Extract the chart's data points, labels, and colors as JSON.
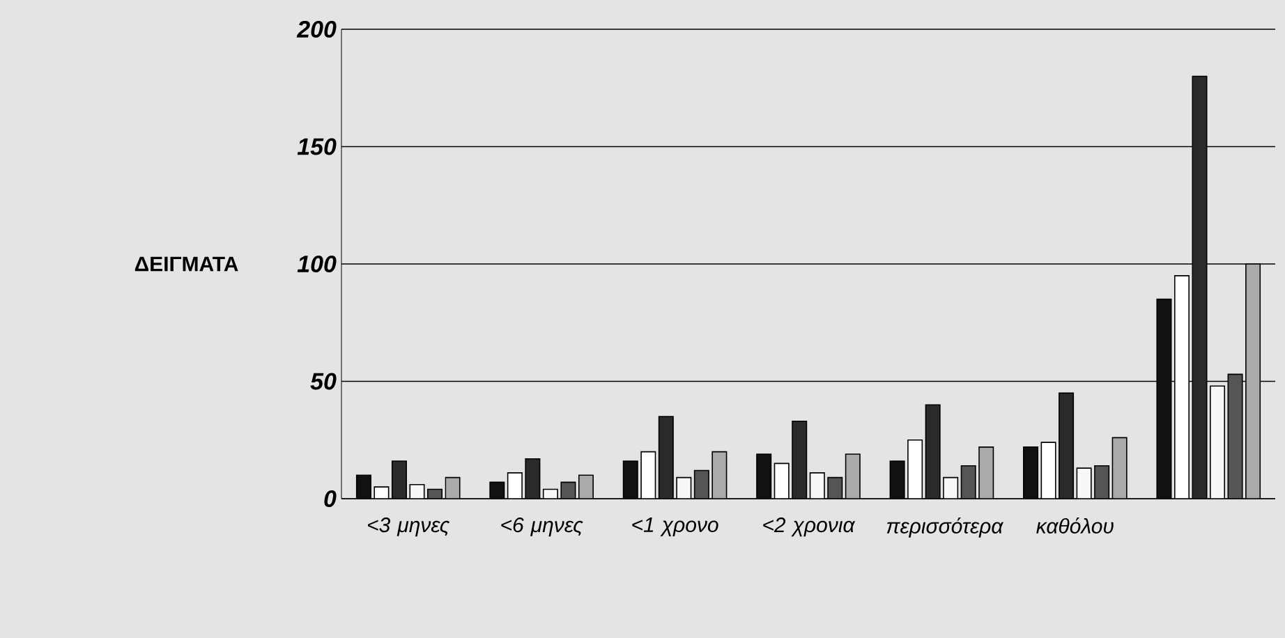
{
  "chart_data": {
    "type": "bar",
    "ylabel": "ΔΕΙΓΜΑΤΑ",
    "categories": [
      "<3 μηνες",
      "<6 μηνες",
      "<1 χρονο",
      "<2 χρονια",
      "περισσότερα",
      "καθόλου",
      null
    ],
    "series": [
      {
        "color": "#111111",
        "values": [
          10,
          7,
          16,
          19,
          16,
          22,
          85
        ]
      },
      {
        "color": "#ffffff",
        "values": [
          5,
          11,
          20,
          15,
          25,
          24,
          95
        ]
      },
      {
        "color": "#2a2a2a",
        "values": [
          16,
          17,
          35,
          33,
          40,
          45,
          180
        ]
      },
      {
        "color": "#f8f8f8",
        "values": [
          6,
          4,
          9,
          11,
          9,
          13,
          48
        ]
      },
      {
        "color": "#555555",
        "values": [
          4,
          7,
          12,
          9,
          14,
          14,
          53
        ]
      },
      {
        "color": "#aaaaaa",
        "values": [
          9,
          10,
          20,
          19,
          22,
          26,
          100
        ]
      }
    ],
    "ylim": [
      0,
      200
    ],
    "yticks": [
      0,
      50,
      100,
      150,
      200
    ],
    "grid": "y"
  }
}
